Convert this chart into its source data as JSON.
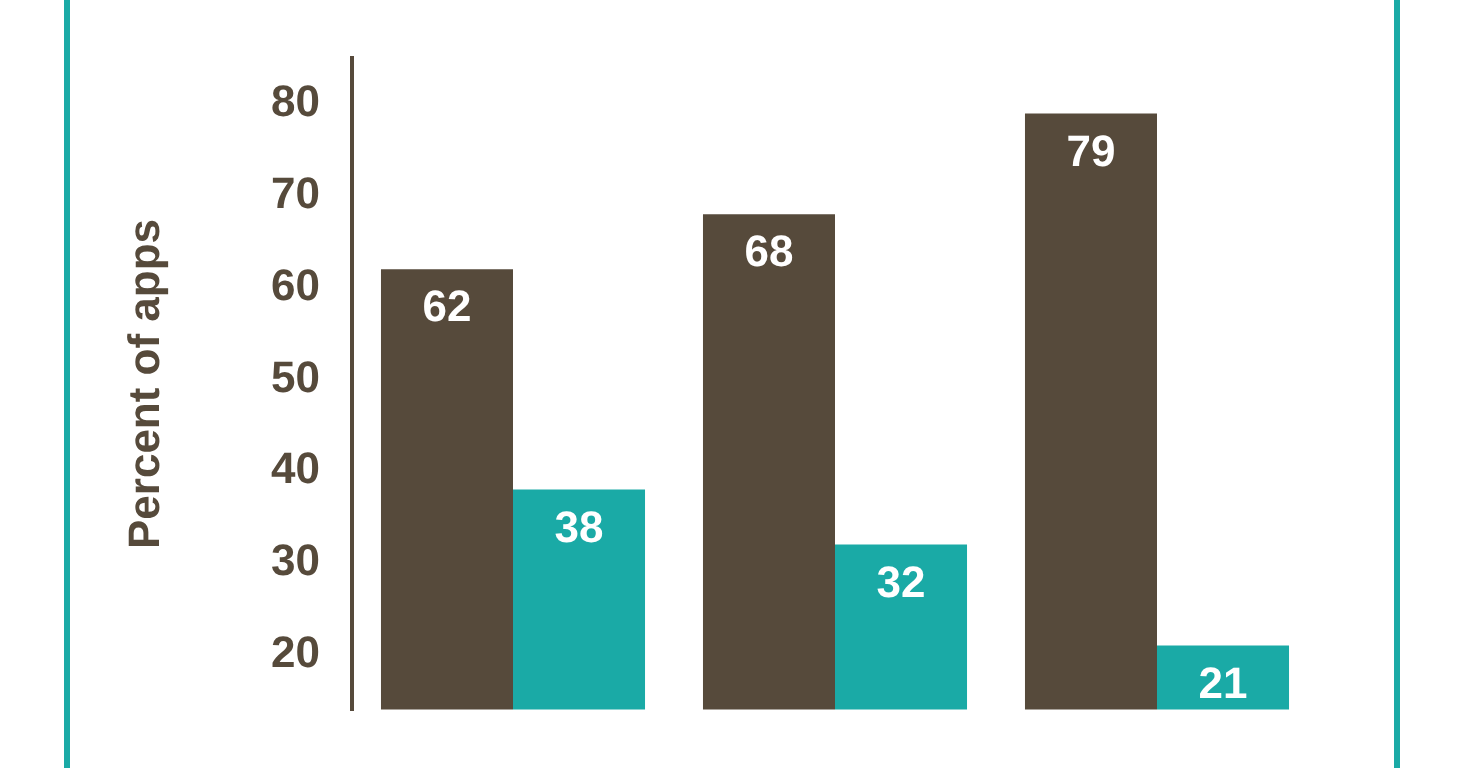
{
  "chart_data": {
    "type": "bar",
    "ylabel": "Percent of apps",
    "categories": [
      null,
      null,
      null
    ],
    "series": [
      {
        "color": "#564a3b",
        "values": [
          62,
          68,
          79
        ]
      },
      {
        "color": "#1aaaa6",
        "values": [
          38,
          32,
          21
        ]
      }
    ],
    "ylim": [
      14,
      85
    ],
    "yticks": [
      20,
      30,
      40,
      50,
      60,
      70,
      80
    ],
    "grid": false,
    "legend": false,
    "data_labels": true
  }
}
